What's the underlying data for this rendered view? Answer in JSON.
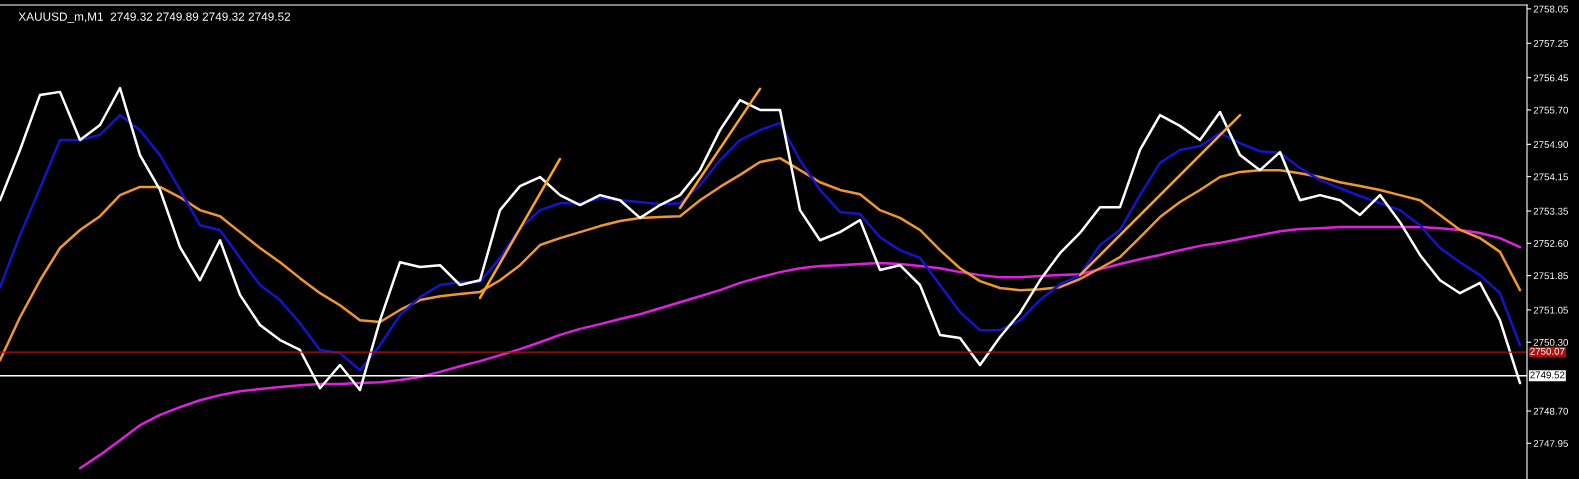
{
  "chart_data": {
    "type": "line",
    "title": "XAUUSD_m,M1  2749.32 2749.89 2749.32 2749.52",
    "categories": [
      null,
      null,
      null,
      null,
      null,
      null,
      null,
      null,
      null,
      null,
      null,
      null,
      null,
      null,
      null,
      null,
      null,
      null,
      null,
      null,
      null,
      null,
      null,
      null,
      null,
      null,
      null,
      null,
      null,
      null,
      null,
      null,
      null,
      null,
      null,
      null,
      null,
      null,
      null,
      null,
      null,
      null,
      null,
      null,
      null,
      null,
      null,
      null,
      null,
      null,
      null,
      null,
      null,
      null,
      null,
      null,
      null,
      null,
      null,
      null,
      null,
      null,
      null,
      null,
      null,
      null,
      null,
      null,
      null,
      null,
      null,
      null,
      null,
      null,
      null,
      null,
      null
    ],
    "series": [
      {
        "color": "#e020e0",
        "values": [
          null,
          null,
          null,
          null,
          2747.37,
          2747.68,
          2748.02,
          2748.37,
          2748.61,
          2748.79,
          2748.95,
          2749.07,
          2749.16,
          2749.21,
          2749.26,
          2749.3,
          2749.33,
          2749.33,
          2749.35,
          2749.37,
          2749.42,
          2749.49,
          2749.61,
          2749.74,
          2749.86,
          2750.0,
          2750.14,
          2750.3,
          2750.47,
          2750.61,
          2750.72,
          2750.84,
          2750.95,
          2751.09,
          2751.23,
          2751.37,
          2751.51,
          2751.68,
          2751.81,
          2751.93,
          2752.02,
          2752.07,
          2752.09,
          2752.12,
          2752.14,
          2752.12,
          2752.07,
          2752.02,
          2751.93,
          2751.86,
          2751.81,
          2751.81,
          2751.84,
          2751.86,
          2751.88,
          2752.0,
          2752.12,
          2752.23,
          2752.33,
          2752.44,
          2752.54,
          2752.61,
          2752.7,
          2752.79,
          2752.88,
          2752.93,
          2752.95,
          2752.98,
          2752.98,
          2752.98,
          2752.98,
          2752.98,
          2752.95,
          2752.91,
          2752.84,
          2752.72,
          2752.51
        ]
      },
      {
        "color": "#f0962e",
        "values": [
          2749.88,
          2750.88,
          2751.74,
          2752.49,
          2752.91,
          2753.23,
          2753.72,
          2753.91,
          2753.91,
          2753.67,
          2753.37,
          2753.23,
          2752.86,
          2752.49,
          2752.16,
          2751.79,
          2751.44,
          2751.16,
          2750.81,
          2750.77,
          2751.05,
          2751.28,
          2751.37,
          2751.42,
          2751.47,
          2751.74,
          2752.09,
          2752.56,
          2752.72,
          2752.86,
          2753.0,
          2753.12,
          2753.19,
          2753.21,
          2753.23,
          2753.6,
          2753.91,
          2754.19,
          2754.49,
          2754.58,
          2754.3,
          2754.02,
          2753.84,
          2753.74,
          2753.37,
          2753.19,
          2752.91,
          2752.44,
          2752.02,
          2751.72,
          2751.56,
          2751.51,
          2751.53,
          2751.58,
          2751.77,
          2752.02,
          2752.28,
          2752.74,
          2753.21,
          2753.56,
          2753.84,
          2754.14,
          2754.26,
          2754.3,
          2754.3,
          2754.23,
          2754.14,
          2754.02,
          2753.93,
          2753.84,
          2753.72,
          2753.6,
          2753.26,
          2752.91,
          2752.72,
          2752.4,
          2751.51
        ]
      },
      {
        "color": "#1414c8",
        "values": [
          2751.58,
          2752.79,
          2753.88,
          2755.0,
          2755.0,
          2755.12,
          2755.58,
          2755.23,
          2754.65,
          2753.84,
          2753.02,
          2752.91,
          2752.26,
          2751.63,
          2751.28,
          2750.74,
          2750.12,
          2750.05,
          2749.65,
          2750.23,
          2750.93,
          2751.35,
          2751.63,
          2751.7,
          2751.7,
          2752.26,
          2752.95,
          2753.37,
          2753.53,
          2753.53,
          2753.65,
          2753.6,
          2753.56,
          2753.51,
          2753.53,
          2753.95,
          2754.53,
          2755.0,
          2755.23,
          2755.4,
          2754.53,
          2753.84,
          2753.33,
          2753.28,
          2752.74,
          2752.44,
          2752.26,
          2751.63,
          2751.0,
          2750.58,
          2750.58,
          2750.81,
          2751.28,
          2751.65,
          2751.86,
          2752.56,
          2752.91,
          2753.72,
          2754.47,
          2754.77,
          2754.86,
          2755.16,
          2754.93,
          2754.74,
          2754.7,
          2754.35,
          2754.07,
          2753.88,
          2753.7,
          2753.53,
          2753.37,
          2753.02,
          2752.49,
          2752.16,
          2751.86,
          2751.44,
          2750.23
        ]
      },
      {
        "color": "#ffffff",
        "values": [
          2753.6,
          2754.77,
          2756.05,
          2756.12,
          2755.0,
          2755.35,
          2756.21,
          2754.65,
          2753.84,
          2752.51,
          2751.74,
          2752.67,
          2751.4,
          2750.7,
          2750.35,
          2750.12,
          2749.23,
          2749.77,
          2749.19,
          2750.81,
          2752.16,
          2752.05,
          2752.09,
          2751.63,
          2751.74,
          2753.37,
          2753.93,
          2754.14,
          2753.72,
          2753.49,
          2753.72,
          2753.6,
          2753.19,
          2753.49,
          2753.72,
          2754.3,
          2755.23,
          2755.93,
          2755.7,
          2755.7,
          2753.37,
          2752.67,
          2752.86,
          2753.14,
          2751.98,
          2752.09,
          2751.63,
          2750.47,
          2750.4,
          2749.77,
          2750.42,
          2750.98,
          2751.74,
          2752.37,
          2752.84,
          2753.44,
          2753.44,
          2754.77,
          2755.58,
          2755.33,
          2755.0,
          2755.65,
          2754.65,
          2754.3,
          2754.72,
          2753.6,
          2753.72,
          2753.6,
          2753.26,
          2753.72,
          2753.09,
          2752.33,
          2751.74,
          2751.44,
          2751.68,
          2750.81,
          2749.35
        ]
      },
      {
        "color": "#ffa31a",
        "values": [
          null,
          null,
          null,
          null,
          null,
          null,
          null,
          null,
          null,
          null,
          null,
          null,
          null,
          null,
          null,
          null,
          null,
          null,
          null,
          null,
          null,
          null,
          null,
          null,
          2751.33,
          null,
          null,
          null,
          2754.56,
          null,
          null,
          null,
          null,
          null,
          null,
          null,
          null,
          null,
          null,
          null,
          null,
          null,
          null,
          null,
          null,
          null,
          null,
          null,
          null,
          null,
          null,
          null,
          null,
          null,
          null,
          null,
          null,
          null,
          null,
          null,
          null,
          null,
          null,
          null,
          null,
          null,
          null,
          null,
          null,
          null,
          null,
          null,
          null,
          null,
          null,
          null,
          null
        ]
      },
      {
        "color": "#ffa31a",
        "values": [
          null,
          null,
          null,
          null,
          null,
          null,
          null,
          null,
          null,
          null,
          null,
          null,
          null,
          null,
          null,
          null,
          null,
          null,
          null,
          null,
          null,
          null,
          null,
          null,
          null,
          null,
          null,
          null,
          null,
          null,
          null,
          null,
          null,
          null,
          2753.42,
          null,
          null,
          null,
          2756.19,
          null,
          null,
          null,
          null,
          null,
          null,
          null,
          null,
          null,
          null,
          null,
          null,
          null,
          null,
          null,
          null,
          null,
          null,
          null,
          null,
          null,
          null,
          null,
          null,
          null,
          null,
          null,
          null,
          null,
          null,
          null,
          null,
          null,
          null,
          null,
          null,
          null,
          null
        ]
      },
      {
        "color": "#ffa31a",
        "values": [
          null,
          null,
          null,
          null,
          null,
          null,
          null,
          null,
          null,
          null,
          null,
          null,
          null,
          null,
          null,
          null,
          null,
          null,
          null,
          null,
          null,
          null,
          null,
          null,
          null,
          null,
          null,
          null,
          null,
          null,
          null,
          null,
          null,
          null,
          null,
          null,
          null,
          null,
          null,
          null,
          null,
          null,
          null,
          null,
          null,
          null,
          null,
          null,
          null,
          null,
          null,
          null,
          null,
          null,
          2751.86,
          null,
          null,
          null,
          null,
          null,
          null,
          null,
          2755.58,
          null,
          null,
          null,
          null,
          null,
          null,
          null,
          null,
          null,
          null,
          null,
          null,
          null,
          null
        ]
      }
    ],
    "ylim": [
      2747.12,
      2758.14
    ],
    "yticks": [
      2758.05,
      2757.25,
      2756.45,
      {
        "value": 2755.7,
        "label": "2755.70"
      },
      {
        "value": 2754.9,
        "label": "2754.90"
      },
      2754.15,
      2753.35,
      {
        "value": 2752.6,
        "label": "2752.60"
      },
      2751.85,
      2751.05,
      {
        "value": 2750.3,
        "label": "2750.30"
      },
      {
        "value": 2748.7,
        "label": "2748.70"
      },
      2747.95
    ],
    "ref_lines": [
      {
        "axis": "y",
        "value": 2750.07,
        "label": "2750.07",
        "color": "#b01010"
      },
      {
        "axis": "y",
        "value": 2749.52,
        "label": "2749.52",
        "color": "#ffffff"
      }
    ],
    "tick_labels": "y",
    "grid": false,
    "marker": "none",
    "line_style": "solid"
  }
}
